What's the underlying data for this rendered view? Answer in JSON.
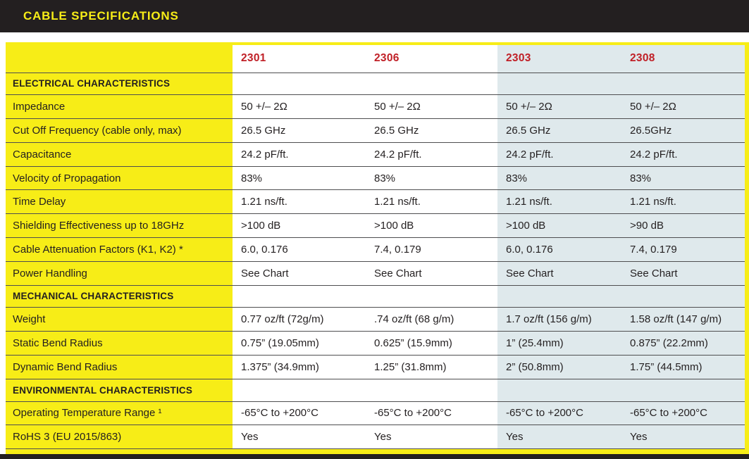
{
  "title": "CABLE SPECIFICATIONS",
  "colors": {
    "brand_yellow": "#f7ed17",
    "header_black": "#231f20",
    "column_header_red": "#c02027",
    "highlight_blue": "#dfe9ec",
    "rule_gray": "#4e4e50"
  },
  "table": {
    "columns": [
      "2301",
      "2306",
      "2303",
      "2308"
    ],
    "sections": [
      {
        "header": "ELECTRICAL CHARACTERISTICS",
        "rows": [
          {
            "label": "Impedance",
            "values": [
              "50 +/– 2Ω",
              "50 +/– 2Ω",
              "50 +/– 2Ω",
              "50 +/– 2Ω"
            ]
          },
          {
            "label": "Cut Off Frequency (cable only, max)",
            "values": [
              "26.5 GHz",
              "26.5 GHz",
              "26.5 GHz",
              "26.5GHz"
            ]
          },
          {
            "label": "Capacitance",
            "values": [
              "24.2 pF/ft.",
              "24.2 pF/ft.",
              "24.2 pF/ft.",
              "24.2 pF/ft."
            ]
          },
          {
            "label": "Velocity of Propagation",
            "values": [
              "83%",
              "83%",
              "83%",
              "83%"
            ]
          },
          {
            "label": "Time Delay",
            "values": [
              "1.21 ns/ft.",
              "1.21 ns/ft.",
              "1.21 ns/ft.",
              "1.21  ns/ft."
            ]
          },
          {
            "label": "Shielding Effectiveness up to 18GHz",
            "values": [
              ">100 dB",
              ">100 dB",
              ">100 dB",
              ">90 dB"
            ]
          },
          {
            "label": "Cable Attenuation Factors (K1, K2) *",
            "values": [
              "6.0, 0.176",
              "7.4, 0.179",
              "6.0, 0.176",
              "7.4, 0.179"
            ]
          },
          {
            "label": "Power Handling",
            "values": [
              "See Chart",
              "See Chart",
              "See Chart",
              "See Chart"
            ]
          }
        ]
      },
      {
        "header": "MECHANICAL CHARACTERISTICS",
        "rows": [
          {
            "label": "Weight",
            "values": [
              "0.77 oz/ft (72g/m)",
              ".74 oz/ft (68 g/m)",
              "1.7 oz/ft (156 g/m)",
              "1.58 oz/ft (147 g/m)"
            ]
          },
          {
            "label": "Static Bend Radius",
            "values": [
              "0.75” (19.05mm)",
              "0.625” (15.9mm)",
              "1” (25.4mm)",
              "0.875” (22.2mm)"
            ]
          },
          {
            "label": "Dynamic Bend Radius",
            "values": [
              "1.375” (34.9mm)",
              "1.25” (31.8mm)",
              "2” (50.8mm)",
              "1.75” (44.5mm)"
            ]
          }
        ]
      },
      {
        "header": "ENVIRONMENTAL CHARACTERISTICS",
        "rows": [
          {
            "label": "Operating Temperature Range ¹",
            "values": [
              "-65°C to +200°C",
              "-65°C to +200°C",
              "-65°C to +200°C",
              "-65°C to +200°C"
            ]
          },
          {
            "label": "RoHS 3 (EU 2015/863)",
            "values": [
              "Yes",
              "Yes",
              "Yes",
              "Yes"
            ]
          }
        ]
      }
    ]
  }
}
